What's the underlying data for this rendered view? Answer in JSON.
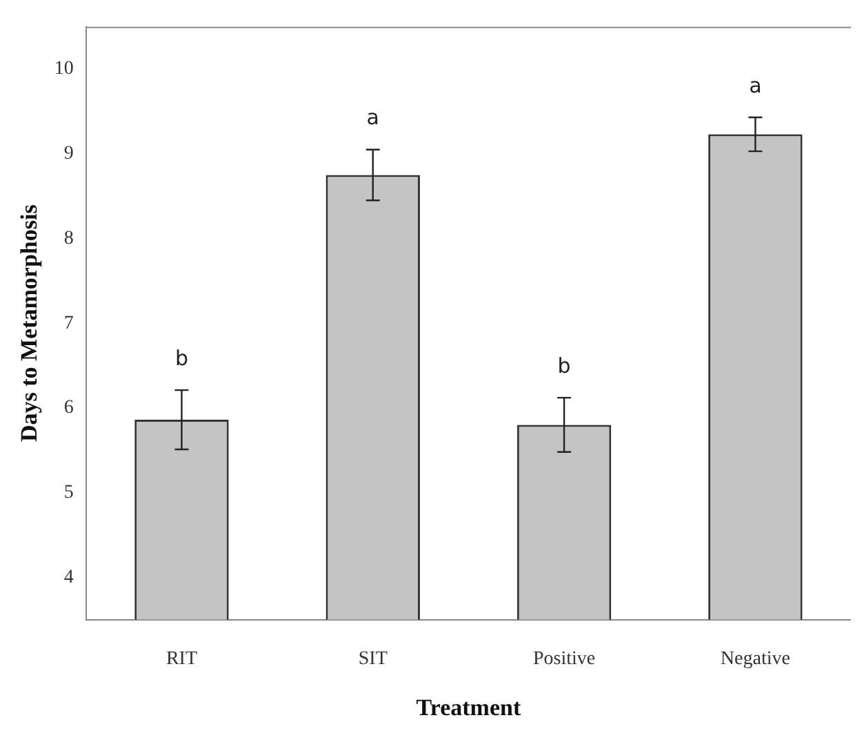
{
  "chart_data": {
    "type": "bar",
    "xlabel": "Treatment",
    "ylabel": "Days to Metamorphosis",
    "categories": [
      "RIT",
      "SIT",
      "Positive",
      "Negative"
    ],
    "values": [
      5.86,
      8.75,
      5.8,
      9.23
    ],
    "errors": [
      0.35,
      0.3,
      0.32,
      0.2
    ],
    "color": "#c4c4c4",
    "ylim": [
      3.5,
      10.5
    ],
    "yticks": [
      4,
      5,
      6,
      7,
      8,
      9,
      10
    ],
    "grid": false,
    "legend": false,
    "annotations": [
      "b",
      "a",
      "b",
      "a"
    ]
  }
}
